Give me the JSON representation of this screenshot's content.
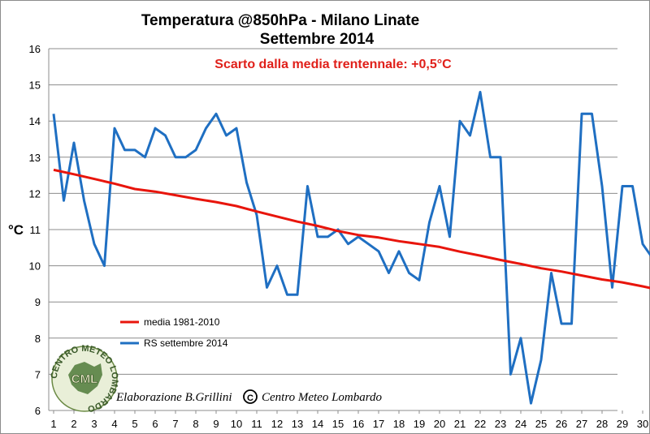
{
  "chart_data": {
    "type": "line",
    "title": "Temperatura @850hPa - Milano Linate",
    "title_line2": "Settembre 2014",
    "annotation": "Scarto dalla media trentennale: +0,5°C",
    "annotation_color": "#e0201a",
    "ylabel": "°C",
    "xlabel": "",
    "ylim": [
      6,
      16
    ],
    "yticks": [
      6,
      7,
      8,
      9,
      10,
      11,
      12,
      13,
      14,
      15,
      16
    ],
    "xlim": [
      1,
      30.5
    ],
    "xticks": [
      1,
      2,
      3,
      4,
      5,
      6,
      7,
      8,
      9,
      10,
      11,
      12,
      13,
      14,
      15,
      16,
      17,
      18,
      19,
      20,
      21,
      22,
      23,
      24,
      25,
      26,
      27,
      28,
      29,
      30
    ],
    "grid": "horizontal",
    "legend_position": "left",
    "series": [
      {
        "name": "media 1981-2010",
        "color": "#e8150c",
        "x": [
          1,
          2,
          3,
          4,
          5,
          6,
          7,
          8,
          9,
          10,
          11,
          12,
          13,
          14,
          15,
          16,
          17,
          18,
          19,
          20,
          21,
          22,
          23,
          24,
          25,
          26,
          27,
          28,
          29,
          30,
          30.5
        ],
        "values": [
          12.65,
          12.53,
          12.4,
          12.27,
          12.12,
          12.05,
          11.95,
          11.85,
          11.76,
          11.65,
          11.5,
          11.36,
          11.22,
          11.1,
          10.96,
          10.85,
          10.78,
          10.68,
          10.6,
          10.52,
          10.39,
          10.28,
          10.16,
          10.05,
          9.93,
          9.84,
          9.73,
          9.62,
          9.54,
          9.43,
          9.37
        ]
      },
      {
        "name": "RS settembre 2014",
        "color": "#1f6fc2",
        "x": [
          1,
          1.5,
          2,
          2.5,
          3,
          3.5,
          4,
          4.5,
          5,
          5.5,
          6,
          6.5,
          7,
          7.5,
          8,
          8.5,
          9,
          9.5,
          10,
          10.5,
          11,
          11.5,
          12,
          12.5,
          13,
          13.5,
          14,
          14.5,
          15,
          15.5,
          16,
          16.5,
          17,
          17.5,
          18,
          18.5,
          19,
          19.5,
          20,
          20.5,
          21,
          21.5,
          22,
          22.5,
          23,
          23.5,
          24,
          24.5,
          25,
          25.5,
          26,
          26.5,
          27,
          27.5,
          28,
          28.5,
          29,
          29.5,
          30,
          30.5
        ],
        "values": [
          14.2,
          11.8,
          13.4,
          11.8,
          10.6,
          10.0,
          13.8,
          13.2,
          13.2,
          13.0,
          13.8,
          13.6,
          13.0,
          13.0,
          13.2,
          13.8,
          14.2,
          13.6,
          13.8,
          12.3,
          11.4,
          9.4,
          10.0,
          9.2,
          9.2,
          12.2,
          10.8,
          10.8,
          11.0,
          10.6,
          10.8,
          10.6,
          10.4,
          9.8,
          10.4,
          9.8,
          9.6,
          11.2,
          12.2,
          10.8,
          14.0,
          13.6,
          14.8,
          13.0,
          13.0,
          7.0,
          8.0,
          6.2,
          7.4,
          9.8,
          8.4,
          8.4,
          14.2,
          14.2,
          12.2,
          9.4,
          12.2,
          12.2,
          10.6,
          10.2
        ]
      }
    ]
  },
  "credit": {
    "text": "Elaborazione B.Grillini",
    "org": "Centro Meteo Lombardo",
    "copyright_symbol": "C"
  },
  "logo": {
    "ring_text": "CENTRO METEO LOMBARDO",
    "center_text": "CML"
  }
}
